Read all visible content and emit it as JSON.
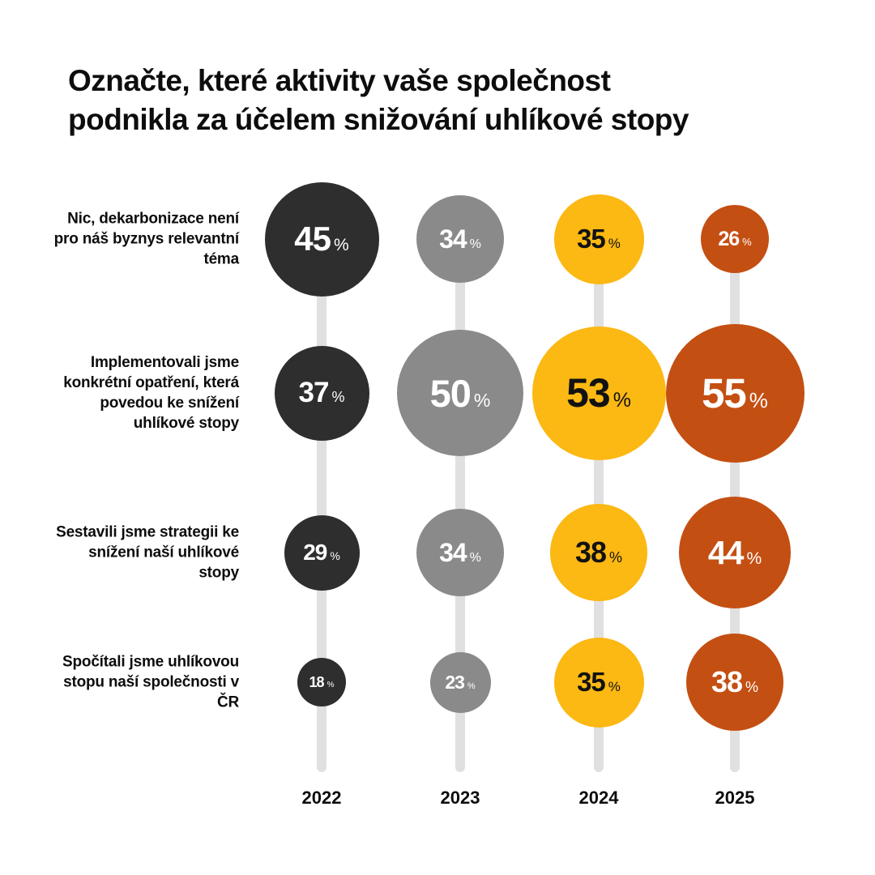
{
  "title": "Označte, které aktivity vaše společnost\npodnikla za účelem snižování uhlíkové stopy",
  "chart_data": {
    "type": "bubble",
    "title": "Označte, které aktivity vaše společnost podnikla za účelem snižování uhlíkové stopy",
    "unit": "%",
    "categories": [
      "Nic, dekarbonizace není pro náš byznys relevantní téma",
      "Implementovali jsme konkrétní opatření, která povedou ke snížení uhlíkové stopy",
      "Sestavili jsme strategii ke snížení naší uhlíkové stopy",
      "Spočítali jsme uhlíkovou stopu naší společnosti v ČR"
    ],
    "x": [
      "2022",
      "2023",
      "2024",
      "2025"
    ],
    "series": [
      {
        "name": "2022",
        "color": "#2e2e2e",
        "text_color": "#ffffff",
        "values": [
          45,
          37,
          29,
          18
        ]
      },
      {
        "name": "2023",
        "color": "#8a8a8a",
        "text_color": "#ffffff",
        "values": [
          34,
          50,
          34,
          23
        ]
      },
      {
        "name": "2024",
        "color": "#fcb813",
        "text_color": "#121212",
        "values": [
          35,
          53,
          38,
          35
        ]
      },
      {
        "name": "2025",
        "color": "#c44f12",
        "text_color": "#ffffff",
        "values": [
          26,
          55,
          44,
          38
        ]
      }
    ],
    "legend": "none",
    "grid": false,
    "size_encoding": "bubble diameter proportional to percentage value",
    "connector_color": "#e0e0e0"
  }
}
